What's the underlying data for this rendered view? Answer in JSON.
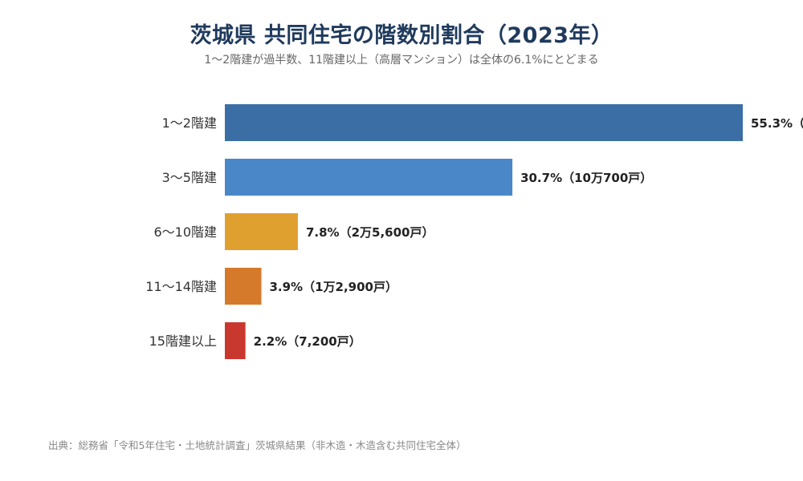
{
  "title": "茨城県 共同住宅の階数別割合（2023年）",
  "subtitle": "1〜2階建が過半数、11階建以上（高層マンション）は全体の6.1%にとどまる",
  "source": "出典：総務省「令和5年住宅・土地統計調査」茨城県結果（非木造・木造含む共同住宅全体）",
  "chart_data": {
    "type": "bar",
    "orientation": "horizontal",
    "categories": [
      "1〜2階建",
      "3〜5階建",
      "6〜10階建",
      "11〜14階建",
      "15階建以上"
    ],
    "values": [
      55.3,
      30.7,
      7.8,
      3.9,
      2.2
    ],
    "value_labels": [
      "55.3%（",
      "30.7%（10万700戸）",
      "7.8%（2万5,600戸）",
      "3.9%（1万2,900戸）",
      "2.2%（7,200戸）"
    ],
    "colors": [
      "#3a6ea5",
      "#4a87c9",
      "#e0a030",
      "#d47a2a",
      "#c8382e"
    ],
    "unit": "%",
    "xlim": [
      0,
      55.3
    ],
    "grid": false,
    "legend": "none"
  }
}
